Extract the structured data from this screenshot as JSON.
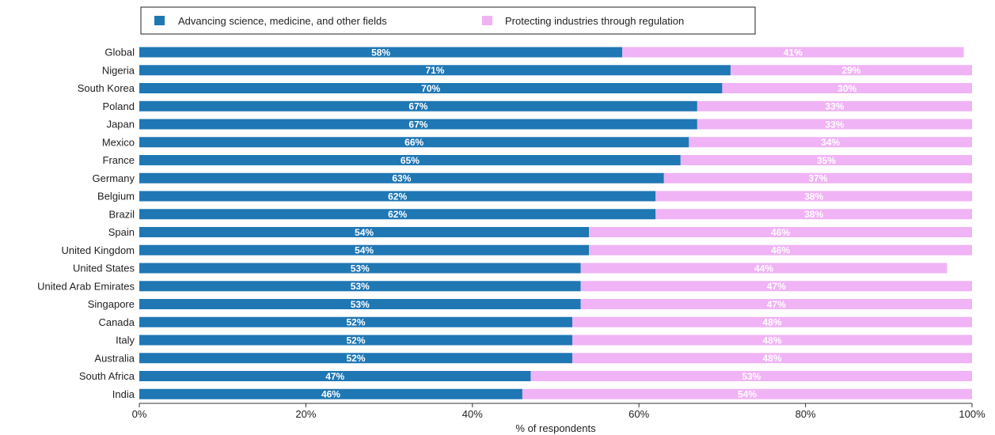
{
  "chart_data": {
    "type": "bar",
    "orientation": "horizontal",
    "stacked": true,
    "title": "",
    "xlabel": "% of respondents",
    "ylabel": "",
    "xlim": [
      0,
      100
    ],
    "x_ticks": [
      "0%",
      "20%",
      "40%",
      "60%",
      "80%",
      "100%"
    ],
    "x_tick_values": [
      0,
      20,
      40,
      60,
      80,
      100
    ],
    "grid": false,
    "legend_position": "top",
    "categories": [
      "Global",
      "Nigeria",
      "South Korea",
      "Poland",
      "Japan",
      "Mexico",
      "France",
      "Germany",
      "Belgium",
      "Brazil",
      "Spain",
      "United Kingdom",
      "United States",
      "United Arab Emirates",
      "Singapore",
      "Canada",
      "Italy",
      "Australia",
      "South Africa",
      "India"
    ],
    "series": [
      {
        "name": "Advancing science, medicine, and other fields",
        "color": "#1f77b4",
        "values": [
          58,
          71,
          70,
          67,
          67,
          66,
          65,
          63,
          62,
          62,
          54,
          54,
          53,
          53,
          53,
          52,
          52,
          52,
          47,
          46
        ],
        "labels": [
          "58%",
          "71%",
          "70%",
          "67%",
          "67%",
          "66%",
          "65%",
          "63%",
          "62%",
          "62%",
          "54%",
          "54%",
          "53%",
          "53%",
          "53%",
          "52%",
          "52%",
          "52%",
          "47%",
          "46%"
        ]
      },
      {
        "name": "Protecting industries through regulation",
        "color": "#f0b3f5",
        "values": [
          41,
          29,
          30,
          33,
          33,
          34,
          35,
          37,
          38,
          38,
          46,
          46,
          44,
          47,
          47,
          48,
          48,
          48,
          53,
          54
        ],
        "labels": [
          "41%",
          "29%",
          "30%",
          "33%",
          "33%",
          "34%",
          "35%",
          "37%",
          "38%",
          "38%",
          "46%",
          "46%",
          "44%",
          "47%",
          "47%",
          "48%",
          "48%",
          "48%",
          "53%",
          "54%"
        ]
      }
    ]
  }
}
